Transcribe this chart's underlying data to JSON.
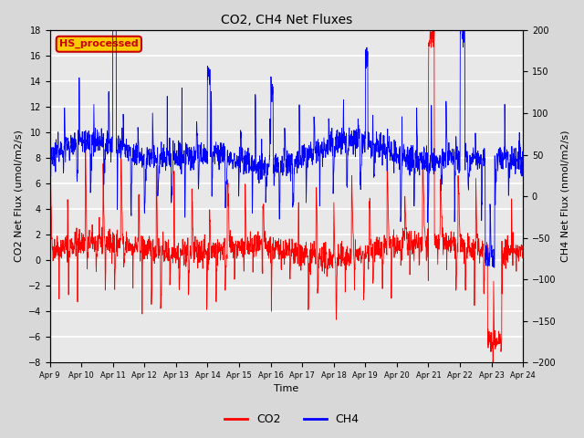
{
  "title": "CO2, CH4 Net Fluxes",
  "xlabel": "Time",
  "ylabel_left": "CO2 Net Flux (umol/m2/s)",
  "ylabel_right": "CH4 Net Flux (nmol/m2/s)",
  "ylim_left": [
    -8,
    18
  ],
  "ylim_right": [
    -200,
    200
  ],
  "yticks_left": [
    -8,
    -6,
    -4,
    -2,
    0,
    2,
    4,
    6,
    8,
    10,
    12,
    14,
    16,
    18
  ],
  "yticks_right": [
    -200,
    -150,
    -100,
    -50,
    0,
    50,
    100,
    150,
    200
  ],
  "x_tick_labels": [
    "Apr 9",
    "Apr 10",
    "Apr 11",
    "Apr 12",
    "Apr 13",
    "Apr 14",
    "Apr 15",
    "Apr 16",
    "Apr 17",
    "Apr 18",
    "Apr 19",
    "Apr 20",
    "Apr 21",
    "Apr 22",
    "Apr 23",
    "Apr 24"
  ],
  "annotation_text": "HS_processed",
  "annotation_color": "#cc0000",
  "annotation_box_color": "#ffcc00",
  "co2_color": "#ff0000",
  "ch4_color": "#0000ff",
  "background_color": "#d8d8d8",
  "plot_bg_color": "#e8e8e8",
  "grid_color": "#ffffff",
  "legend_co2": "CO2",
  "legend_ch4": "CH4",
  "seed": 42,
  "n_points": 2000
}
